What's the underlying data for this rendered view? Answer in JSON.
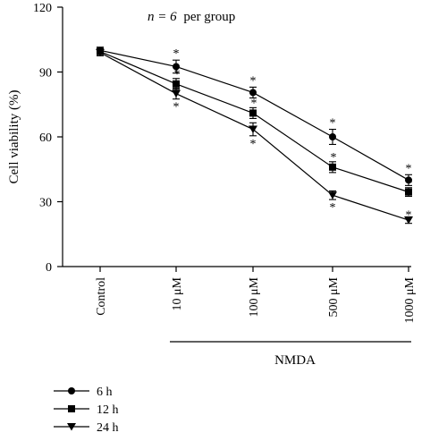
{
  "chart_data": {
    "type": "line",
    "annotation": "per group",
    "annotation_n": "n = 6",
    "ylabel": "Cell viability (%)",
    "ylim": [
      0,
      120
    ],
    "yticks": [
      0,
      30,
      60,
      90,
      120
    ],
    "categories": [
      "Control",
      "10 μM",
      "100 μM",
      "500 μM",
      "1000 μM"
    ],
    "group_label": "NMDA",
    "grid": false,
    "legend_position": "bottom-left",
    "series": [
      {
        "name": "6 h",
        "marker": "circle",
        "values": [
          100,
          92.5,
          80.5,
          60,
          40
        ],
        "err": [
          1.5,
          3,
          2.5,
          3.5,
          2.5
        ],
        "sig": [
          "",
          "*",
          "*",
          "*",
          "*"
        ]
      },
      {
        "name": "12 h",
        "marker": "square",
        "values": [
          99.5,
          84.5,
          71,
          46,
          34.5
        ],
        "err": [
          1.5,
          2.5,
          2.5,
          2.5,
          2
        ],
        "sig": [
          "",
          "*",
          "*",
          "*",
          "*"
        ]
      },
      {
        "name": "24 h",
        "marker": "triangle-down",
        "values": [
          99,
          80,
          63.5,
          33,
          21.5
        ],
        "err": [
          1.5,
          2.5,
          3,
          2,
          1.5
        ],
        "sig": [
          "",
          "*",
          "*",
          "*",
          "*"
        ]
      }
    ]
  }
}
